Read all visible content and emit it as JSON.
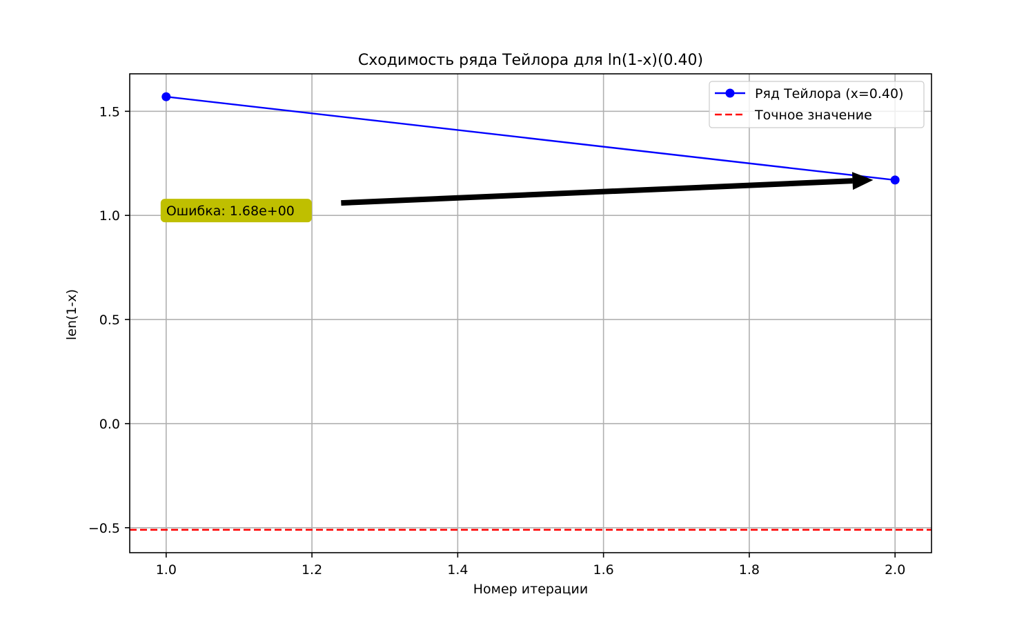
{
  "chart_data": {
    "type": "line",
    "title": "Сходимость ряда Тейлора для ln(1-x)(0.40)",
    "xlabel": "Номер итерации",
    "ylabel": "len(1-x)",
    "xlim": [
      0.95,
      2.05
    ],
    "ylim": [
      -0.62,
      1.68
    ],
    "xticks": [
      1.0,
      1.2,
      1.4,
      1.6,
      1.8,
      2.0
    ],
    "xtick_labels": [
      "1.0",
      "1.2",
      "1.4",
      "1.6",
      "1.8",
      "2.0"
    ],
    "yticks": [
      -0.5,
      0.0,
      0.5,
      1.0,
      1.5
    ],
    "ytick_labels": [
      "−0.5",
      "0.0",
      "0.5",
      "1.0",
      "1.5"
    ],
    "grid": true,
    "legend_position": "top-right",
    "series": [
      {
        "name": "Ряд Тейлора (x=0.40)",
        "type": "line-marker",
        "color": "#0000ff",
        "x": [
          1,
          2
        ],
        "y": [
          1.57,
          1.17
        ]
      },
      {
        "name": "Точное значение",
        "type": "hline",
        "color": "#ff0000",
        "y": -0.51
      }
    ],
    "annotation": {
      "text": "Ошибка: 1.68e+00",
      "box_color": "#bfbf00",
      "text_at": [
        1.0,
        1.0
      ],
      "arrow_from": [
        1.24,
        1.06
      ],
      "arrow_to": [
        1.97,
        1.17
      ]
    }
  }
}
